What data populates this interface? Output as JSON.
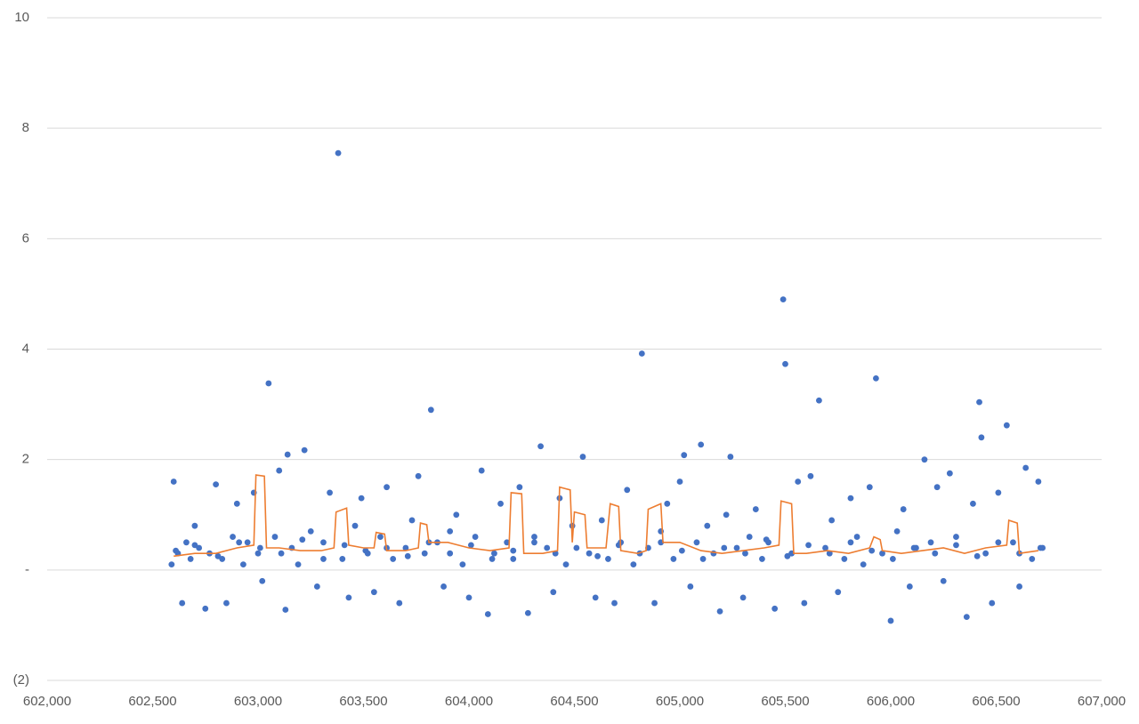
{
  "chart_data": {
    "type": "scatter",
    "xlim": [
      602000,
      607000
    ],
    "ylim": [
      -2,
      10
    ],
    "xticks": [
      {
        "value": 602000,
        "label": "602,000"
      },
      {
        "value": 602500,
        "label": "602,500"
      },
      {
        "value": 603000,
        "label": "603,000"
      },
      {
        "value": 603500,
        "label": "603,500"
      },
      {
        "value": 604000,
        "label": "604,000"
      },
      {
        "value": 604500,
        "label": "604,500"
      },
      {
        "value": 605000,
        "label": "605,000"
      },
      {
        "value": 605500,
        "label": "605,500"
      },
      {
        "value": 606000,
        "label": "606,000"
      },
      {
        "value": 606500,
        "label": "606,500"
      },
      {
        "value": 607000,
        "label": "607,000"
      }
    ],
    "yticks": [
      {
        "value": -2,
        "label": "(2)"
      },
      {
        "value": 0,
        "label": "-"
      },
      2,
      4,
      6,
      8,
      10
    ],
    "grid": true,
    "series": [
      {
        "type": "scatter",
        "color": "#4472c4",
        "x": [
          602590,
          602600,
          602620,
          602640,
          602660,
          602680,
          602700,
          602720,
          602750,
          602770,
          602800,
          602830,
          602850,
          602880,
          602900,
          602930,
          602950,
          602980,
          603000,
          603020,
          603050,
          603080,
          603100,
          603130,
          603140,
          603160,
          603190,
          603220,
          603250,
          603280,
          603310,
          603340,
          603380,
          603400,
          603430,
          603460,
          603490,
          603520,
          603550,
          603580,
          603610,
          603640,
          603670,
          603700,
          603730,
          603760,
          603790,
          603820,
          603850,
          603880,
          603910,
          603940,
          603970,
          604000,
          604030,
          604060,
          604090,
          604120,
          604150,
          604180,
          604210,
          604240,
          604280,
          604310,
          604340,
          604370,
          604400,
          604430,
          604460,
          604490,
          604540,
          604570,
          604600,
          604630,
          604660,
          604690,
          604720,
          604750,
          604780,
          604820,
          604850,
          604880,
          604910,
          604940,
          604970,
          605000,
          605020,
          605050,
          605080,
          605100,
          605130,
          605160,
          605190,
          605220,
          605240,
          605270,
          605300,
          605330,
          605360,
          605390,
          605420,
          605450,
          605490,
          605500,
          605530,
          605560,
          605590,
          605620,
          605660,
          605690,
          605720,
          605750,
          605780,
          605810,
          605840,
          605870,
          605900,
          605930,
          605960,
          606000,
          606030,
          606060,
          606090,
          606120,
          606160,
          606190,
          606220,
          606250,
          606280,
          606310,
          606360,
          606390,
          606420,
          606430,
          606450,
          606480,
          606510,
          606550,
          606580,
          606610,
          606640,
          606670,
          606700,
          606720,
          602610,
          602700,
          602810,
          602910,
          603010,
          603110,
          603210,
          603310,
          603410,
          603510,
          603610,
          603710,
          603810,
          603910,
          604010,
          604110,
          604210,
          604310,
          604410,
          604510,
          604610,
          604710,
          604810,
          604910,
          605010,
          605110,
          605210,
          605310,
          605410,
          605510,
          605610,
          605710,
          605810,
          605910,
          606010,
          606110,
          606210,
          606310,
          606410,
          606510,
          606610,
          606710
        ],
        "values": [
          0.1,
          1.6,
          0.3,
          -0.6,
          0.5,
          0.2,
          0.8,
          0.4,
          -0.7,
          0.3,
          1.55,
          0.2,
          -0.6,
          0.6,
          1.2,
          0.1,
          0.5,
          1.4,
          0.3,
          -0.2,
          3.38,
          0.6,
          1.8,
          -0.72,
          2.09,
          0.4,
          0.1,
          2.17,
          0.7,
          -0.3,
          0.5,
          1.4,
          7.55,
          0.2,
          -0.5,
          0.8,
          1.3,
          0.3,
          -0.4,
          0.6,
          1.5,
          0.2,
          -0.6,
          0.4,
          0.9,
          1.7,
          0.3,
          2.9,
          0.5,
          -0.3,
          0.7,
          1.0,
          0.1,
          -0.5,
          0.6,
          1.8,
          -0.8,
          0.3,
          1.2,
          0.5,
          0.2,
          1.5,
          -0.78,
          0.6,
          2.24,
          0.4,
          -0.4,
          1.3,
          0.1,
          0.8,
          2.05,
          0.3,
          -0.5,
          0.9,
          0.2,
          -0.6,
          0.5,
          1.45,
          0.1,
          3.92,
          0.4,
          -0.6,
          0.7,
          1.2,
          0.2,
          1.6,
          2.08,
          -0.3,
          0.5,
          2.27,
          0.8,
          0.3,
          -0.75,
          1.0,
          2.05,
          0.4,
          -0.5,
          0.6,
          1.1,
          0.2,
          0.5,
          -0.7,
          4.9,
          3.73,
          0.3,
          1.6,
          -0.6,
          1.7,
          3.07,
          0.4,
          0.9,
          -0.4,
          0.2,
          1.3,
          0.6,
          0.1,
          1.5,
          3.47,
          0.3,
          -0.92,
          0.7,
          1.1,
          -0.3,
          0.4,
          2.0,
          0.5,
          1.5,
          -0.2,
          1.75,
          0.6,
          -0.85,
          1.2,
          3.04,
          2.4,
          0.3,
          -0.6,
          1.4,
          2.62,
          0.5,
          -0.3,
          1.85,
          0.2,
          1.6,
          0.4,
          0.35,
          0.45,
          0.25,
          0.5,
          0.4,
          0.3,
          0.55,
          0.2,
          0.45,
          0.35,
          0.4,
          0.25,
          0.5,
          0.3,
          0.45,
          0.2,
          0.35,
          0.5,
          0.3,
          0.4,
          0.25,
          0.45,
          0.3,
          0.5,
          0.35,
          0.2,
          0.4,
          0.3,
          0.55,
          0.25,
          0.45,
          0.3,
          0.5,
          0.35,
          0.2,
          0.4,
          0.3,
          0.45,
          0.25,
          0.5,
          0.3,
          0.4
        ]
      },
      {
        "type": "line",
        "color": "#ed7d31",
        "x": [
          602600,
          602700,
          602800,
          602900,
          602980,
          602990,
          603030,
          603040,
          603100,
          603200,
          603300,
          603360,
          603370,
          603420,
          603430,
          603500,
          603550,
          603560,
          603600,
          603610,
          603700,
          603760,
          603770,
          603800,
          603810,
          603900,
          604000,
          604100,
          604190,
          604200,
          604250,
          604260,
          604350,
          604420,
          604430,
          604480,
          604490,
          604500,
          604550,
          604560,
          604650,
          604670,
          604710,
          604720,
          604800,
          604840,
          604850,
          604910,
          604920,
          605000,
          605100,
          605200,
          605300,
          605400,
          605470,
          605480,
          605530,
          605540,
          605600,
          605700,
          605800,
          605900,
          605920,
          605950,
          605960,
          606050,
          606150,
          606250,
          606350,
          606450,
          606550,
          606560,
          606600,
          606610,
          606700
        ],
        "values": [
          0.25,
          0.3,
          0.3,
          0.4,
          0.45,
          1.72,
          1.7,
          0.4,
          0.4,
          0.35,
          0.35,
          0.4,
          1.05,
          1.12,
          0.45,
          0.4,
          0.4,
          0.68,
          0.65,
          0.35,
          0.35,
          0.4,
          0.85,
          0.82,
          0.5,
          0.5,
          0.4,
          0.35,
          0.4,
          1.4,
          1.38,
          0.3,
          0.3,
          0.35,
          1.5,
          1.45,
          0.5,
          1.05,
          1.0,
          0.4,
          0.4,
          1.2,
          1.15,
          0.35,
          0.3,
          0.35,
          1.1,
          1.2,
          0.5,
          0.5,
          0.35,
          0.3,
          0.35,
          0.4,
          0.45,
          1.25,
          1.2,
          0.3,
          0.3,
          0.35,
          0.3,
          0.4,
          0.6,
          0.55,
          0.35,
          0.3,
          0.35,
          0.4,
          0.3,
          0.4,
          0.45,
          0.9,
          0.85,
          0.3,
          0.35
        ]
      }
    ]
  }
}
